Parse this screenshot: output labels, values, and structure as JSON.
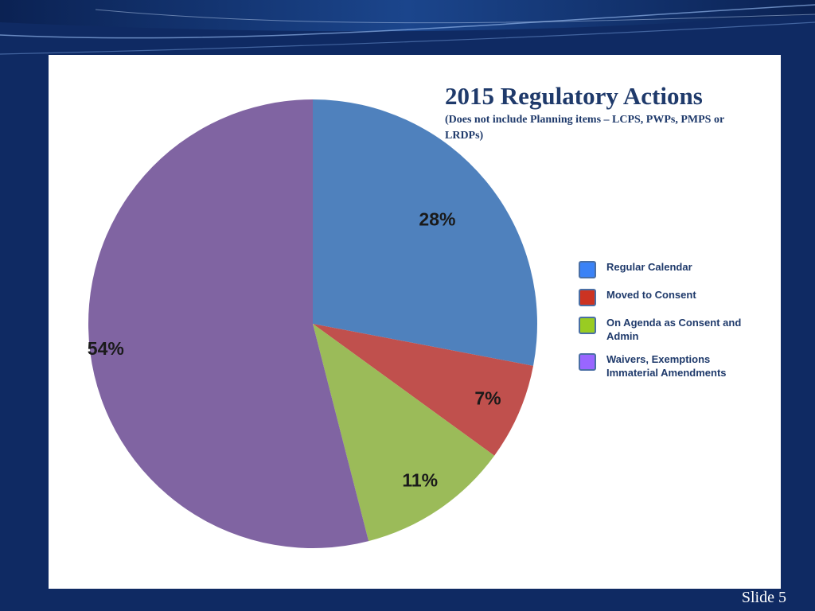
{
  "colors": {
    "background": "#0f2a63",
    "panel": "#ffffff",
    "title": "#1f3a6b"
  },
  "slide": {
    "number_label": "Slide 5"
  },
  "chart_data": {
    "type": "pie",
    "title": "2015 Regulatory Actions",
    "subtitle": "(Does not include Planning items – LCPS, PWPs, PMPS or LRDPs)",
    "categories": [
      "Regular Calendar",
      "Moved to Consent",
      "On Agenda as Consent and Admin",
      "Waivers, Exemptions Immaterial Amendments"
    ],
    "values": [
      28,
      7,
      11,
      54
    ],
    "data_labels": [
      "28%",
      "7%",
      "11%",
      "54%"
    ],
    "slice_colors": [
      "#4f81bd",
      "#c0504d",
      "#9bbb59",
      "#8064a2"
    ],
    "legend_colors": [
      "#3b82f6",
      "#cc3322",
      "#99cc22",
      "#9966ff"
    ],
    "legend_items": [
      "Regular Calendar",
      "Moved to Consent",
      "On Agenda as Consent and\nAdmin",
      "Waivers, Exemptions\nImmaterial Amendments"
    ],
    "legend_position": "right",
    "start_angle": "12 o'clock",
    "direction": "clockwise"
  }
}
